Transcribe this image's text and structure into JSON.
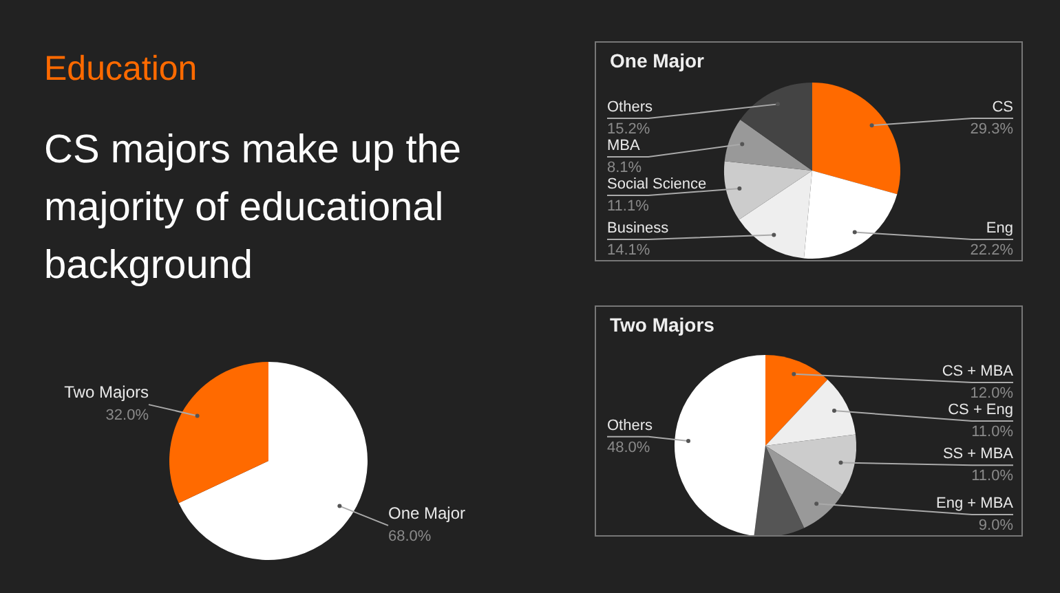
{
  "chart_data": [
    {
      "type": "pie",
      "title": "Education",
      "subtitle": "CS majors make up the majority of educational background",
      "categories": [
        "One Major",
        "Two Majors"
      ],
      "values": [
        68,
        32
      ],
      "colors": [
        "#ffffff",
        "#ff6a00"
      ],
      "value_labels": [
        "68.0%",
        "32.0%"
      ]
    },
    {
      "type": "pie",
      "title": "One Major",
      "categories": [
        "CS",
        "Eng",
        "Business",
        "Social Science",
        "MBA",
        "Others"
      ],
      "values": [
        29.3,
        22.2,
        14.1,
        11.1,
        8.1,
        15.2
      ],
      "colors": [
        "#ff6a00",
        "#ffffff",
        "#eeeeee",
        "#cccccc",
        "#999999",
        "#444444"
      ],
      "value_labels": [
        "29.3%",
        "22.2%",
        "14.1%",
        "11.1%",
        "8.1%",
        "15.2%"
      ]
    },
    {
      "type": "pie",
      "title": "Two Majors",
      "categories": [
        "CS + MBA",
        "CS + Eng",
        "SS + MBA",
        "Eng + MBA",
        null,
        "Others"
      ],
      "values": [
        12,
        11,
        11,
        9,
        9,
        48
      ],
      "colors": [
        "#ff6a00",
        "#eeeeee",
        "#cccccc",
        "#999999",
        "#555555",
        "#ffffff"
      ],
      "value_labels": [
        "12.0%",
        "11.0%",
        "11.0%",
        "9.0%",
        null,
        "48.0%"
      ]
    }
  ]
}
